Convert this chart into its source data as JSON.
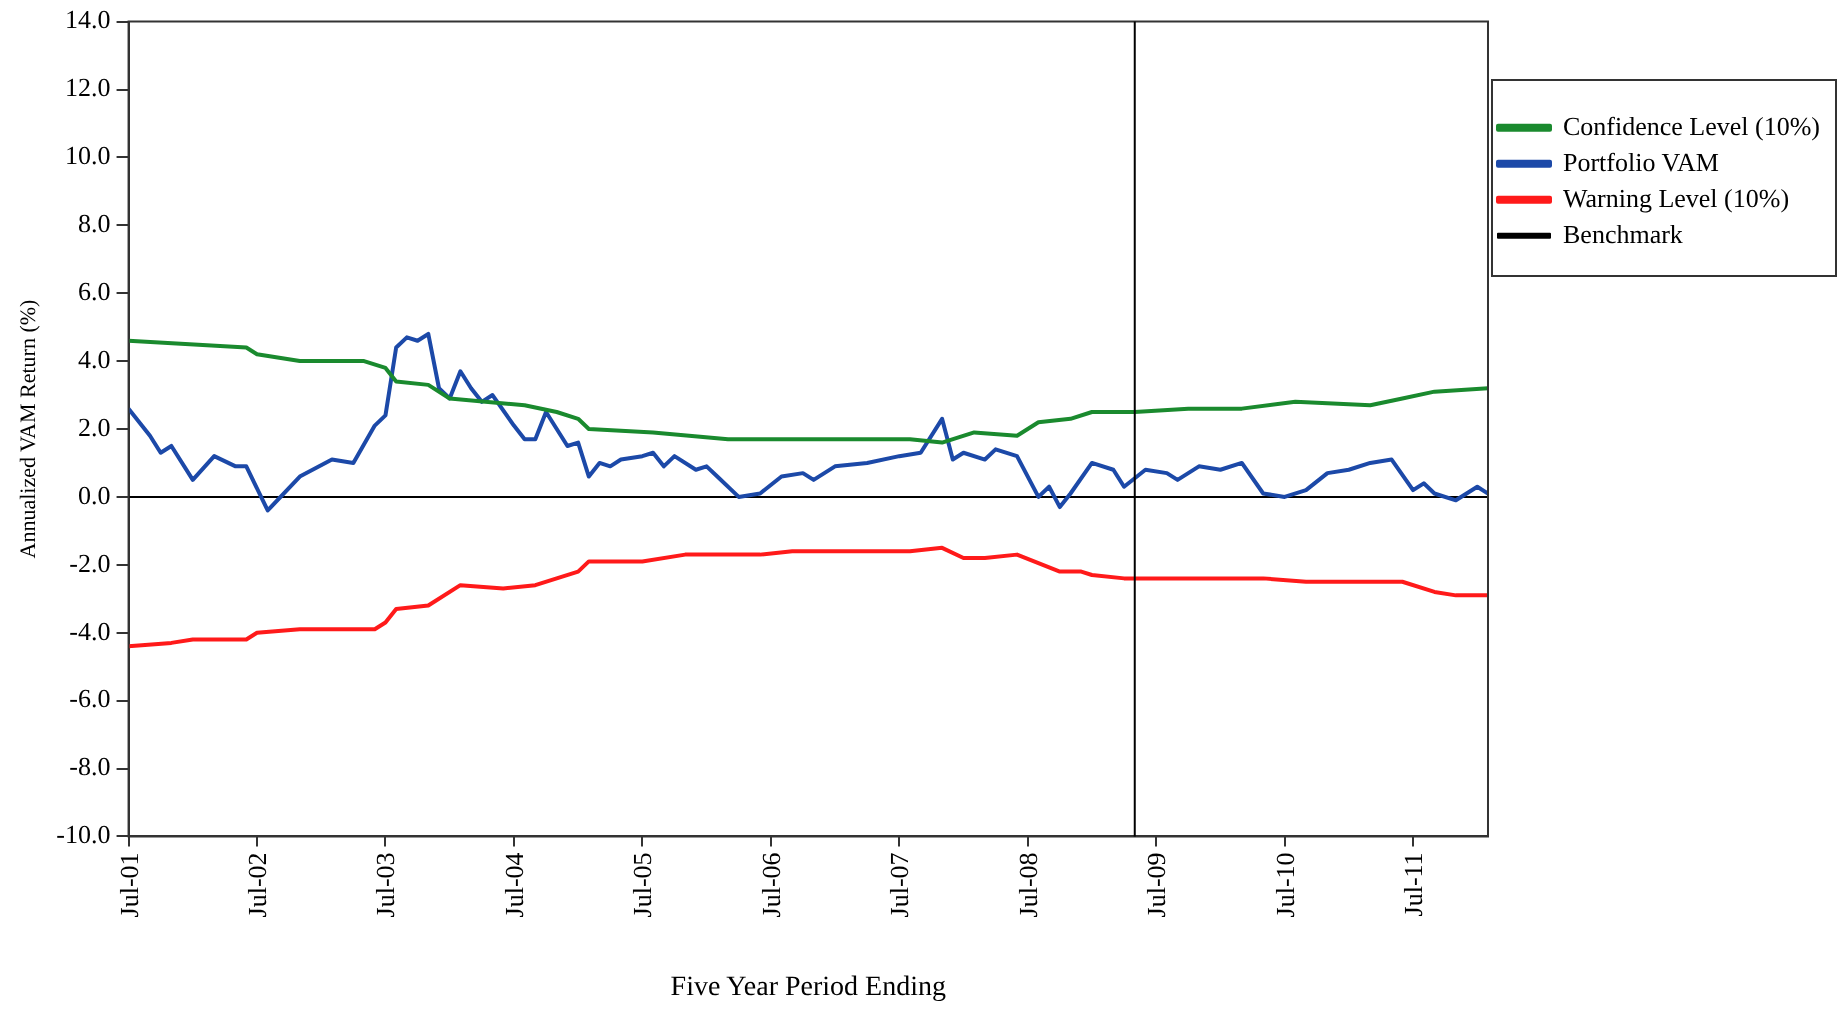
{
  "chart_data": {
    "type": "line",
    "xlabel": "Five Year Period Ending",
    "ylabel": "Annualized VAM Return (%)",
    "xlim": [
      "2001-07",
      "2012-02"
    ],
    "xticks": [
      {
        "value": "2001-07",
        "label": "Jul-01"
      },
      {
        "value": "2002-07",
        "label": "Jul-02"
      },
      {
        "value": "2003-07",
        "label": "Jul-03"
      },
      {
        "value": "2004-07",
        "label": "Jul-04"
      },
      {
        "value": "2005-07",
        "label": "Jul-05"
      },
      {
        "value": "2006-07",
        "label": "Jul-06"
      },
      {
        "value": "2007-07",
        "label": "Jul-07"
      },
      {
        "value": "2008-07",
        "label": "Jul-08"
      },
      {
        "value": "2009-07",
        "label": "Jul-09"
      },
      {
        "value": "2010-07",
        "label": "Jul-10"
      },
      {
        "value": "2011-07",
        "label": "Jul-11"
      }
    ],
    "ylim": [
      -10,
      14
    ],
    "yticks": [
      {
        "value": -10,
        "label": "-10.0"
      },
      {
        "value": -8,
        "label": "-8.0"
      },
      {
        "value": -6,
        "label": "-6.0"
      },
      {
        "value": -4,
        "label": "-4.0"
      },
      {
        "value": -2,
        "label": "-2.0"
      },
      {
        "value": 0,
        "label": "0.0"
      },
      {
        "value": 2,
        "label": "2.0"
      },
      {
        "value": 4,
        "label": "4.0"
      },
      {
        "value": 6,
        "label": "6.0"
      },
      {
        "value": 8,
        "label": "8.0"
      },
      {
        "value": 10,
        "label": "10.0"
      },
      {
        "value": 12,
        "label": "12.0"
      },
      {
        "value": 14,
        "label": "14.0"
      }
    ],
    "grid": false,
    "legend": "right",
    "marker": "none",
    "line_style": "solid",
    "ref_lines": [
      {
        "axis": "x",
        "value": "2009-05",
        "color": "#000000"
      }
    ],
    "series": [
      {
        "name": "Confidence Level (10%)",
        "color": "#1a8a2e",
        "x": [
          "2001-07",
          "2002-06",
          "2002-07",
          "2002-11",
          "2003-05",
          "2003-07",
          "2003-08",
          "2003-11",
          "2004-01",
          "2004-08",
          "2004-11",
          "2005-01",
          "2005-02",
          "2005-08",
          "2006-03",
          "2006-10",
          "2007-08",
          "2007-11",
          "2008-02",
          "2008-06",
          "2008-08",
          "2008-11",
          "2009-01",
          "2009-05",
          "2009-10",
          "2010-03",
          "2010-08",
          "2011-03",
          "2011-06",
          "2011-09",
          "2012-02"
        ],
        "values": [
          4.6,
          4.4,
          4.2,
          4.0,
          4.0,
          3.8,
          3.4,
          3.3,
          2.9,
          2.7,
          2.5,
          2.3,
          2.0,
          1.9,
          1.7,
          1.7,
          1.7,
          1.6,
          1.9,
          1.8,
          2.2,
          2.3,
          2.5,
          2.5,
          2.6,
          2.6,
          2.8,
          2.7,
          2.9,
          3.1,
          3.2
        ]
      },
      {
        "name": "Portfolio VAM",
        "color": "#1c49a8",
        "x": [
          "2001-07",
          "2001-09",
          "2001-10",
          "2001-11",
          "2002-01",
          "2002-03",
          "2002-05",
          "2002-06",
          "2002-08",
          "2002-11",
          "2003-02",
          "2003-04",
          "2003-06",
          "2003-07",
          "2003-08",
          "2003-09",
          "2003-10",
          "2003-11",
          "2003-12",
          "2004-01",
          "2004-02",
          "2004-03",
          "2004-04",
          "2004-05",
          "2004-07",
          "2004-08",
          "2004-09",
          "2004-10",
          "2004-11",
          "2004-12",
          "2005-01",
          "2005-02",
          "2005-03",
          "2005-04",
          "2005-05",
          "2005-07",
          "2005-08",
          "2005-09",
          "2005-10",
          "2005-12",
          "2006-01",
          "2006-02",
          "2006-04",
          "2006-06",
          "2006-08",
          "2006-10",
          "2006-11",
          "2006-12",
          "2007-01",
          "2007-04",
          "2007-07",
          "2007-09",
          "2007-11",
          "2007-12",
          "2008-01",
          "2008-03",
          "2008-04",
          "2008-06",
          "2008-08",
          "2008-09",
          "2008-10",
          "2008-11",
          "2009-01",
          "2009-03",
          "2009-04",
          "2009-06",
          "2009-08",
          "2009-09",
          "2009-11",
          "2010-01",
          "2010-03",
          "2010-05",
          "2010-07",
          "2010-09",
          "2010-11",
          "2011-01",
          "2011-03",
          "2011-05",
          "2011-07",
          "2011-08",
          "2011-09",
          "2011-11",
          "2012-01",
          "2012-02"
        ],
        "values": [
          2.6,
          1.8,
          1.3,
          1.5,
          0.5,
          1.2,
          0.9,
          0.9,
          -0.4,
          0.6,
          1.1,
          1.0,
          2.1,
          2.4,
          4.4,
          4.7,
          4.6,
          4.8,
          3.2,
          2.9,
          3.7,
          3.2,
          2.8,
          3.0,
          2.1,
          1.7,
          1.7,
          2.5,
          2.0,
          1.5,
          1.6,
          0.6,
          1.0,
          0.9,
          1.1,
          1.2,
          1.3,
          0.9,
          1.2,
          0.8,
          0.9,
          0.6,
          0.0,
          0.1,
          0.6,
          0.7,
          0.5,
          0.7,
          0.9,
          1.0,
          1.2,
          1.3,
          2.3,
          1.1,
          1.3,
          1.1,
          1.4,
          1.2,
          0.0,
          0.3,
          -0.3,
          0.1,
          1.0,
          0.8,
          0.3,
          0.8,
          0.7,
          0.5,
          0.9,
          0.8,
          1.0,
          0.1,
          0.0,
          0.2,
          0.7,
          0.8,
          1.0,
          1.1,
          0.2,
          0.4,
          0.1,
          -0.1,
          0.3,
          0.1
        ]
      },
      {
        "name": "Warning Level (10%)",
        "color": "#ff1a1a",
        "x": [
          "2001-07",
          "2001-11",
          "2002-01",
          "2002-06",
          "2002-07",
          "2002-11",
          "2003-06",
          "2003-07",
          "2003-08",
          "2003-11",
          "2004-02",
          "2004-06",
          "2004-09",
          "2004-11",
          "2005-01",
          "2005-02",
          "2005-07",
          "2005-11",
          "2006-06",
          "2006-09",
          "2007-08",
          "2007-11",
          "2008-01",
          "2008-03",
          "2008-06",
          "2008-10",
          "2008-12",
          "2009-01",
          "2009-04",
          "2010-05",
          "2010-09",
          "2011-06",
          "2011-09",
          "2011-11",
          "2012-02"
        ],
        "values": [
          -4.4,
          -4.3,
          -4.2,
          -4.2,
          -4.0,
          -3.9,
          -3.9,
          -3.7,
          -3.3,
          -3.2,
          -2.6,
          -2.7,
          -2.6,
          -2.4,
          -2.2,
          -1.9,
          -1.9,
          -1.7,
          -1.7,
          -1.6,
          -1.6,
          -1.5,
          -1.8,
          -1.8,
          -1.7,
          -2.2,
          -2.2,
          -2.3,
          -2.4,
          -2.4,
          -2.5,
          -2.5,
          -2.8,
          -2.9,
          -2.9
        ]
      },
      {
        "name": "Benchmark",
        "color": "#000000",
        "x": [
          "2001-07",
          "2012-02"
        ],
        "values": [
          0,
          0
        ]
      }
    ]
  }
}
